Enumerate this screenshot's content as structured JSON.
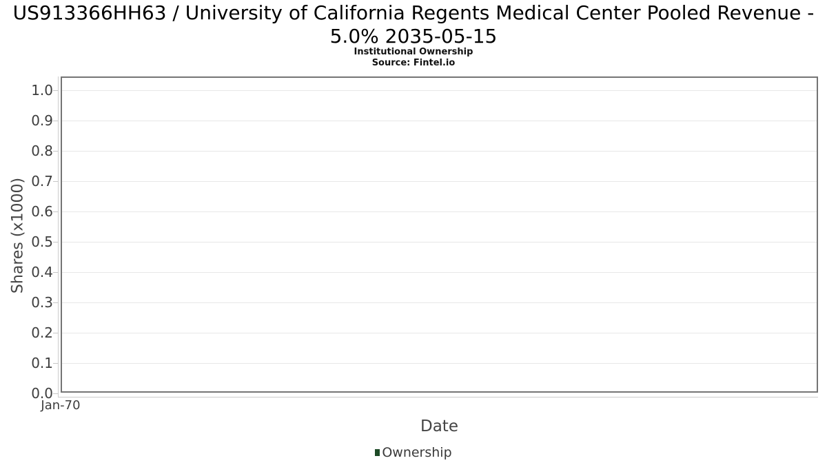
{
  "chart_data": {
    "type": "line",
    "title": "US913366HH63 / University of California Regents Medical Center Pooled Revenue - 5.0% 2035-05-15",
    "subtitle": "Institutional Ownership",
    "source": "Source: Fintel.io",
    "xlabel": "Date",
    "ylabel": "Shares (x1000)",
    "x_tick_labels": [
      "Jan-70"
    ],
    "y_tick_labels": [
      "0.0",
      "0.1",
      "0.2",
      "0.3",
      "0.4",
      "0.5",
      "0.6",
      "0.7",
      "0.8",
      "0.9",
      "1.0"
    ],
    "y_tick_values": [
      0.0,
      0.1,
      0.2,
      0.3,
      0.4,
      0.5,
      0.6,
      0.7,
      0.8,
      0.9,
      1.0
    ],
    "ylim": [
      0.0,
      1.046
    ],
    "grid": true,
    "legend_position": "bottom",
    "series": [
      {
        "name": "Ownership",
        "color": "#1d4b27",
        "x": [],
        "values": []
      }
    ]
  },
  "colors": {
    "series_green": "#1d4b27",
    "frame_border": "#747474",
    "gridline": "#e7e7e7",
    "axis_light": "#cccccc",
    "tick_text": "#3d3d3d",
    "title_text": "#000000"
  }
}
